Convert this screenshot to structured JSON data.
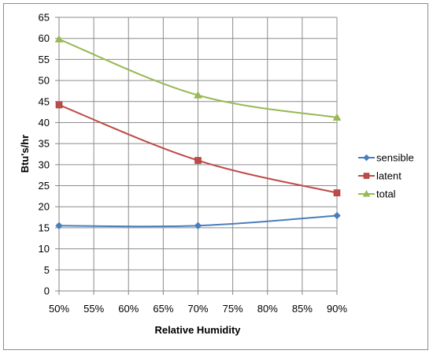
{
  "chart_data": {
    "type": "line",
    "title": "",
    "xlabel": "Relative Humidity",
    "ylabel": "Btu's/hr",
    "x_ticks": [
      "50%",
      "55%",
      "60%",
      "65%",
      "70%",
      "75%",
      "80%",
      "85%",
      "90%"
    ],
    "y_ticks": [
      "0",
      "5",
      "10",
      "15",
      "20",
      "25",
      "30",
      "35",
      "40",
      "45",
      "50",
      "55",
      "60",
      "65"
    ],
    "xlim": [
      50,
      90
    ],
    "ylim": [
      0,
      65
    ],
    "grid": true,
    "legend_position": "right",
    "x": [
      50,
      70,
      90
    ],
    "series": [
      {
        "name": "sensible",
        "values": [
          15.5,
          15.5,
          17.9
        ],
        "color": "#4a7ebb",
        "marker": "diamond"
      },
      {
        "name": "latent",
        "values": [
          44.2,
          31.0,
          23.3
        ],
        "color": "#be4b48",
        "marker": "square"
      },
      {
        "name": "total",
        "values": [
          59.8,
          46.5,
          41.2
        ],
        "color": "#98b954",
        "marker": "triangle"
      }
    ]
  }
}
